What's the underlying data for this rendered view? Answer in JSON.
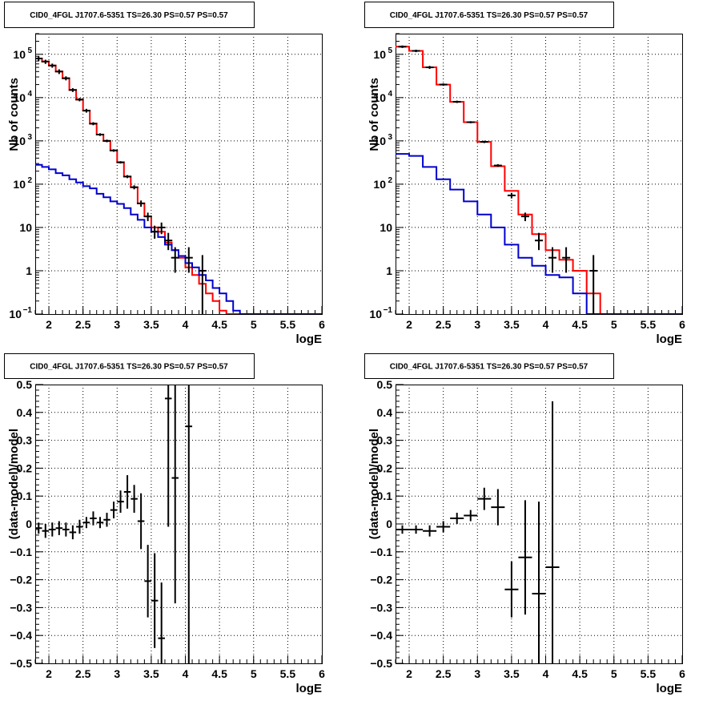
{
  "colors": {
    "data": "#000000",
    "total_model": "#ff0000",
    "background_model": "#0000cc",
    "grid": "#000000"
  },
  "chart_data": [
    {
      "type": "step-histogram",
      "title": "CID0_4FGL J1707.6-5351 TS=26.30 PS=0.57 PS=0.57",
      "xlabel": "logE",
      "ylabel": "Nb of counts",
      "xlim": [
        1.8,
        6.0
      ],
      "ylim": [
        0.1,
        300000
      ],
      "yscale": "log",
      "grid": true,
      "x_ticks": [
        "2",
        "2.5",
        "3",
        "3.5",
        "4",
        "4.5",
        "5",
        "5.5",
        "6"
      ],
      "y_ticks": [
        {
          "v": 0.1,
          "b": "10",
          "e": "−1"
        },
        {
          "v": 1,
          "b": "1",
          "e": ""
        },
        {
          "v": 10,
          "b": "10",
          "e": ""
        },
        {
          "v": 100,
          "b": "10",
          "e": "2"
        },
        {
          "v": 1000,
          "b": "10",
          "e": "3"
        },
        {
          "v": 10000,
          "b": "10",
          "e": "4"
        },
        {
          "v": 100000,
          "b": "10",
          "e": "5"
        }
      ],
      "bin_width": 0.1,
      "bin_starts": [
        1.8,
        1.9,
        2.0,
        2.1,
        2.2,
        2.3,
        2.4,
        2.5,
        2.6,
        2.7,
        2.8,
        2.9,
        3.0,
        3.1,
        3.2,
        3.3,
        3.4,
        3.5,
        3.6,
        3.7,
        3.8,
        3.9,
        4.0,
        4.1,
        4.2,
        4.3,
        4.4,
        4.5,
        4.6,
        4.7,
        4.8,
        4.9,
        5.0,
        5.1,
        5.2,
        5.3,
        5.4,
        5.5,
        5.6,
        5.7,
        5.8,
        5.9
      ],
      "series": [
        {
          "kind": "step",
          "color": "total_model",
          "values": [
            80000,
            68000,
            55000,
            40000,
            28000,
            15000,
            9000,
            5000,
            2500,
            1400,
            1000,
            600,
            320,
            150,
            85,
            36,
            18,
            10,
            8,
            4.5,
            3,
            2,
            1.2,
            0.8,
            0.5,
            0.3,
            0.2,
            0.12,
            0.1,
            0.1,
            0.1,
            0.1,
            0.1,
            0.1,
            0.1,
            0.1,
            0.1,
            0.1,
            0.1,
            0.1,
            0.1,
            0.1
          ]
        },
        {
          "kind": "step",
          "color": "background_model",
          "values": [
            280,
            250,
            220,
            180,
            160,
            130,
            110,
            90,
            80,
            60,
            50,
            40,
            35,
            28,
            20,
            15,
            10,
            8,
            6,
            4,
            3,
            2.2,
            1.5,
            1.2,
            0.8,
            0.6,
            0.4,
            0.3,
            0.2,
            0.12,
            0.1,
            0.1,
            0.1,
            0.1,
            0.1,
            0.1,
            0.1,
            0.1,
            0.1,
            0.1,
            0.1,
            0.1
          ]
        },
        {
          "kind": "points",
          "color": "data",
          "points": [
            {
              "x": 1.85,
              "y": 80000,
              "lo": 70000,
              "hi": 90000
            },
            {
              "x": 1.95,
              "y": 68000,
              "lo": 60000,
              "hi": 75000
            },
            {
              "x": 2.05,
              "y": 55000,
              "lo": 49000,
              "hi": 61000
            },
            {
              "x": 2.15,
              "y": 40000,
              "lo": 35000,
              "hi": 45000
            },
            {
              "x": 2.25,
              "y": 28000,
              "lo": 25000,
              "hi": 31000
            },
            {
              "x": 2.35,
              "y": 15000,
              "lo": 13500,
              "hi": 16500
            },
            {
              "x": 2.45,
              "y": 9000,
              "lo": 8200,
              "hi": 9800
            },
            {
              "x": 2.55,
              "y": 5000,
              "lo": 4500,
              "hi": 5500
            },
            {
              "x": 2.65,
              "y": 2500,
              "lo": 2300,
              "hi": 2700
            },
            {
              "x": 2.75,
              "y": 1400,
              "lo": 1300,
              "hi": 1500
            },
            {
              "x": 2.85,
              "y": 1000,
              "lo": 930,
              "hi": 1070
            },
            {
              "x": 2.95,
              "y": 600,
              "lo": 560,
              "hi": 640
            },
            {
              "x": 3.05,
              "y": 320,
              "lo": 300,
              "hi": 340
            },
            {
              "x": 3.15,
              "y": 150,
              "lo": 138,
              "hi": 162
            },
            {
              "x": 3.25,
              "y": 85,
              "lo": 76,
              "hi": 94
            },
            {
              "x": 3.35,
              "y": 36,
              "lo": 30,
              "hi": 42
            },
            {
              "x": 3.45,
              "y": 18,
              "lo": 14,
              "hi": 22
            },
            {
              "x": 3.55,
              "y": 8,
              "lo": 5.5,
              "hi": 11
            },
            {
              "x": 3.65,
              "y": 10,
              "lo": 7,
              "hi": 13
            },
            {
              "x": 3.75,
              "y": 5,
              "lo": 3,
              "hi": 7.5
            },
            {
              "x": 3.85,
              "y": 2,
              "lo": 0.9,
              "hi": 3.5
            },
            {
              "x": 4.05,
              "y": 2,
              "lo": 0.9,
              "hi": 3.5
            },
            {
              "x": 4.25,
              "y": 1,
              "lo": 0.1,
              "hi": 2.3
            }
          ]
        }
      ]
    },
    {
      "type": "step-histogram",
      "title": "CID0_4FGL J1707.6-5351 TS=26.30 PS=0.57 PS=0.57",
      "xlabel": "logE",
      "ylabel": "Nb of counts",
      "xlim": [
        1.8,
        6.0
      ],
      "ylim": [
        0.1,
        300000
      ],
      "yscale": "log",
      "grid": true,
      "x_ticks": [
        "2",
        "2.5",
        "3",
        "3.5",
        "4",
        "4.5",
        "5",
        "5.5",
        "6"
      ],
      "y_ticks": [
        {
          "v": 0.1,
          "b": "10",
          "e": "−1"
        },
        {
          "v": 1,
          "b": "1",
          "e": ""
        },
        {
          "v": 10,
          "b": "10",
          "e": ""
        },
        {
          "v": 100,
          "b": "10",
          "e": "2"
        },
        {
          "v": 1000,
          "b": "10",
          "e": "3"
        },
        {
          "v": 10000,
          "b": "10",
          "e": "4"
        },
        {
          "v": 100000,
          "b": "10",
          "e": "5"
        }
      ],
      "bin_width": 0.2,
      "bin_starts": [
        1.8,
        2.0,
        2.2,
        2.4,
        2.6,
        2.8,
        3.0,
        3.2,
        3.4,
        3.6,
        3.8,
        4.0,
        4.2,
        4.4,
        4.6,
        4.8,
        5.0,
        5.2,
        5.4,
        5.6,
        5.8
      ],
      "series": [
        {
          "kind": "step",
          "color": "total_model",
          "values": [
            150000,
            120000,
            50000,
            20000,
            8000,
            2700,
            950,
            260,
            70,
            20,
            7,
            3,
            1.8,
            1.0,
            0.3,
            0.1,
            0.1,
            0.1,
            0.1,
            0.1,
            0.1
          ]
        },
        {
          "kind": "step",
          "color": "background_model",
          "values": [
            500,
            450,
            250,
            130,
            75,
            40,
            20,
            10,
            4,
            2,
            1.3,
            0.8,
            0.7,
            0.3,
            0.1,
            0.1,
            0.1,
            0.1,
            0.1,
            0.1,
            0.1
          ]
        },
        {
          "kind": "points",
          "color": "data",
          "points": [
            {
              "x": 1.9,
              "y": 150000,
              "lo": 140000,
              "hi": 160000
            },
            {
              "x": 2.1,
              "y": 120000,
              "lo": 112000,
              "hi": 128000
            },
            {
              "x": 2.3,
              "y": 50000,
              "lo": 46000,
              "hi": 54000
            },
            {
              "x": 2.5,
              "y": 20000,
              "lo": 18700,
              "hi": 21300
            },
            {
              "x": 2.7,
              "y": 8000,
              "lo": 7500,
              "hi": 8500
            },
            {
              "x": 2.9,
              "y": 2700,
              "lo": 2550,
              "hi": 2850
            },
            {
              "x": 3.1,
              "y": 950,
              "lo": 890,
              "hi": 1010
            },
            {
              "x": 3.3,
              "y": 270,
              "lo": 250,
              "hi": 290
            },
            {
              "x": 3.5,
              "y": 55,
              "lo": 47,
              "hi": 63
            },
            {
              "x": 3.7,
              "y": 18,
              "lo": 14,
              "hi": 22
            },
            {
              "x": 3.9,
              "y": 5,
              "lo": 3,
              "hi": 7.5
            },
            {
              "x": 4.1,
              "y": 2,
              "lo": 0.9,
              "hi": 3.5
            },
            {
              "x": 4.3,
              "y": 2,
              "lo": 0.9,
              "hi": 3.5
            },
            {
              "x": 4.7,
              "y": 1,
              "lo": 0.1,
              "hi": 2.3
            }
          ]
        }
      ]
    },
    {
      "type": "scatter-errorbars",
      "title": "CID0_4FGL J1707.6-5351 TS=26.30 PS=0.57 PS=0.57",
      "xlabel": "logE",
      "ylabel": "(data-model)/model",
      "xlim": [
        1.8,
        6.0
      ],
      "ylim": [
        -0.5,
        0.5
      ],
      "grid": true,
      "x_ticks": [
        "2",
        "2.5",
        "3",
        "3.5",
        "4",
        "4.5",
        "5",
        "5.5",
        "6"
      ],
      "y_ticks": [
        "0.5",
        "0.4",
        "0.3",
        "0.2",
        "0.1",
        "0",
        "−0.1",
        "−0.2",
        "−0.3",
        "−0.4",
        "−0.5"
      ],
      "x_half_width": 0.05,
      "points": [
        {
          "x": 1.85,
          "y": -0.015,
          "e": 0.02
        },
        {
          "x": 1.95,
          "y": -0.025,
          "e": 0.025
        },
        {
          "x": 2.05,
          "y": -0.02,
          "e": 0.025
        },
        {
          "x": 2.15,
          "y": -0.015,
          "e": 0.025
        },
        {
          "x": 2.25,
          "y": -0.02,
          "e": 0.025
        },
        {
          "x": 2.35,
          "y": -0.03,
          "e": 0.025
        },
        {
          "x": 2.45,
          "y": -0.01,
          "e": 0.025
        },
        {
          "x": 2.55,
          "y": 0.005,
          "e": 0.02
        },
        {
          "x": 2.65,
          "y": 0.02,
          "e": 0.025
        },
        {
          "x": 2.75,
          "y": 0.005,
          "e": 0.02
        },
        {
          "x": 2.85,
          "y": 0.015,
          "e": 0.025
        },
        {
          "x": 2.95,
          "y": 0.05,
          "e": 0.03
        },
        {
          "x": 3.05,
          "y": 0.08,
          "e": 0.04
        },
        {
          "x": 3.15,
          "y": 0.115,
          "e": 0.06
        },
        {
          "x": 3.25,
          "y": 0.09,
          "e": 0.05
        },
        {
          "x": 3.35,
          "y": 0.01,
          "e": 0.1
        },
        {
          "x": 3.45,
          "y": -0.205,
          "e": 0.13
        },
        {
          "x": 3.55,
          "y": -0.275,
          "e": 0.17
        },
        {
          "x": 3.65,
          "y": -0.41,
          "e": 0.2
        },
        {
          "x": 3.75,
          "y": 0.45,
          "e": 0.46
        },
        {
          "x": 3.85,
          "y": 0.165,
          "e": 0.45
        },
        {
          "x": 4.05,
          "y": 0.35,
          "e": 0.9
        }
      ]
    },
    {
      "type": "scatter-errorbars",
      "title": "CID0_4FGL J1707.6-5351 TS=26.30 PS=0.57 PS=0.57",
      "xlabel": "logE",
      "ylabel": "(data-model)/model",
      "xlim": [
        1.8,
        6.0
      ],
      "ylim": [
        -0.5,
        0.5
      ],
      "grid": true,
      "x_ticks": [
        "2",
        "2.5",
        "3",
        "3.5",
        "4",
        "4.5",
        "5",
        "5.5",
        "6"
      ],
      "y_ticks": [
        "0.5",
        "0.4",
        "0.3",
        "0.2",
        "0.1",
        "0",
        "−0.1",
        "−0.2",
        "−0.3",
        "−0.4",
        "−0.5"
      ],
      "x_half_width": 0.1,
      "points": [
        {
          "x": 1.9,
          "y": -0.02,
          "e": 0.015
        },
        {
          "x": 2.1,
          "y": -0.02,
          "e": 0.015
        },
        {
          "x": 2.3,
          "y": -0.025,
          "e": 0.02
        },
        {
          "x": 2.5,
          "y": -0.01,
          "e": 0.02
        },
        {
          "x": 2.7,
          "y": 0.02,
          "e": 0.02
        },
        {
          "x": 2.9,
          "y": 0.03,
          "e": 0.02
        },
        {
          "x": 3.1,
          "y": 0.09,
          "e": 0.04
        },
        {
          "x": 3.3,
          "y": 0.06,
          "e": 0.065
        },
        {
          "x": 3.5,
          "y": -0.235,
          "e": 0.1
        },
        {
          "x": 3.7,
          "y": -0.12,
          "e": 0.205
        },
        {
          "x": 3.9,
          "y": -0.25,
          "e": 0.33
        },
        {
          "x": 4.1,
          "y": -0.155,
          "e": 0.595
        }
      ]
    }
  ]
}
